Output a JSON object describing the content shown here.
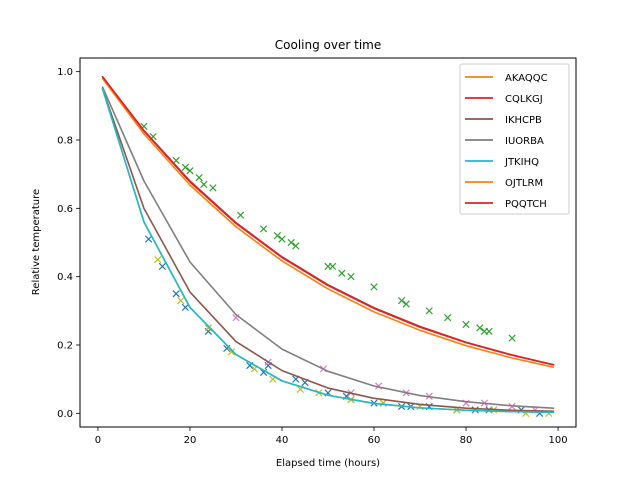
{
  "chart_data": {
    "type": "line",
    "title": "Cooling over time",
    "xlabel": "Elapsed time (hours)",
    "ylabel": "Relative temperature",
    "xlim": [
      -3.9,
      103.9
    ],
    "ylim": [
      -0.04,
      1.04
    ],
    "x_ticks": [
      0,
      20,
      40,
      60,
      80,
      100
    ],
    "y_ticks": [
      0.0,
      0.2,
      0.4,
      0.6,
      0.8,
      1.0
    ],
    "grid": false,
    "legend_position": "top-right",
    "series": [
      {
        "name": "AKAQQC",
        "color": "#ff7f0e",
        "x": [
          1,
          10,
          20,
          30,
          40,
          50,
          60,
          70,
          80,
          90,
          99
        ],
        "y": [
          0.95,
          0.56,
          0.31,
          0.172,
          0.095,
          0.053,
          0.029,
          0.016,
          0.009,
          0.005,
          0.003
        ]
      },
      {
        "name": "CQLKGJ",
        "color": "#d62728",
        "x": [
          1,
          10,
          20,
          30,
          40,
          50,
          60,
          70,
          80,
          90,
          99
        ],
        "y": [
          0.985,
          0.828,
          0.68,
          0.558,
          0.458,
          0.376,
          0.309,
          0.254,
          0.208,
          0.171,
          0.142
        ]
      },
      {
        "name": "IKHCPB",
        "color": "#8c564b",
        "x": [
          1,
          10,
          20,
          30,
          40,
          50,
          60,
          70,
          80,
          90,
          99
        ],
        "y": [
          0.95,
          0.6,
          0.355,
          0.21,
          0.125,
          0.074,
          0.044,
          0.026,
          0.015,
          0.009,
          0.006
        ]
      },
      {
        "name": "IUORBA",
        "color": "#7f7f7f",
        "x": [
          1,
          10,
          20,
          30,
          40,
          50,
          60,
          70,
          80,
          90,
          99
        ],
        "y": [
          0.955,
          0.68,
          0.443,
          0.289,
          0.188,
          0.123,
          0.08,
          0.052,
          0.034,
          0.022,
          0.015
        ]
      },
      {
        "name": "JTKIHQ",
        "color": "#17becf",
        "x": [
          1,
          10,
          20,
          30,
          40,
          50,
          60,
          70,
          80,
          90,
          99
        ],
        "y": [
          0.95,
          0.56,
          0.31,
          0.172,
          0.095,
          0.053,
          0.029,
          0.016,
          0.009,
          0.005,
          0.003
        ]
      },
      {
        "name": "OJTLRM",
        "color": "#ff7f0e",
        "x": [
          1,
          10,
          20,
          30,
          40,
          50,
          60,
          70,
          80,
          90,
          99
        ],
        "y": [
          0.98,
          0.818,
          0.668,
          0.546,
          0.446,
          0.364,
          0.297,
          0.243,
          0.198,
          0.162,
          0.135
        ]
      },
      {
        "name": "PQQTCH",
        "color": "#d62728",
        "x": [
          1,
          10,
          20,
          30,
          40,
          50,
          60,
          70,
          80,
          90,
          99
        ],
        "y": [
          0.985,
          0.826,
          0.677,
          0.556,
          0.456,
          0.374,
          0.307,
          0.252,
          0.207,
          0.17,
          0.142
        ]
      }
    ],
    "scatter_series": [
      {
        "color": "#2ca02c",
        "x": [
          10,
          12,
          17,
          19,
          20,
          22,
          23,
          25,
          31,
          36,
          39,
          40,
          42,
          43,
          50,
          51,
          53,
          55,
          60,
          66,
          67,
          72,
          76,
          80,
          83,
          84,
          85,
          90
        ],
        "y": [
          0.84,
          0.81,
          0.74,
          0.72,
          0.71,
          0.69,
          0.67,
          0.66,
          0.58,
          0.54,
          0.52,
          0.51,
          0.5,
          0.49,
          0.43,
          0.43,
          0.41,
          0.4,
          0.37,
          0.33,
          0.32,
          0.3,
          0.28,
          0.26,
          0.25,
          0.24,
          0.24,
          0.22
        ]
      },
      {
        "color": "#1f77b4",
        "x": [
          11,
          14,
          17,
          19,
          24,
          28,
          33,
          36,
          37,
          43,
          45,
          50,
          54,
          55,
          60,
          62,
          66,
          68,
          72,
          78,
          82,
          85,
          92,
          96
        ],
        "y": [
          0.51,
          0.43,
          0.35,
          0.31,
          0.24,
          0.19,
          0.14,
          0.12,
          0.14,
          0.1,
          0.09,
          0.06,
          0.05,
          0.04,
          0.03,
          0.03,
          0.02,
          0.02,
          0.02,
          0.01,
          0.01,
          0.01,
          0.01,
          0.0
        ]
      },
      {
        "color": "#e377c2",
        "x": [
          30,
          37,
          49,
          55,
          61,
          67,
          72,
          80,
          84,
          90,
          95
        ],
        "y": [
          0.28,
          0.15,
          0.13,
          0.06,
          0.08,
          0.06,
          0.05,
          0.03,
          0.03,
          0.02,
          0.01
        ]
      },
      {
        "color": "#bcbd22",
        "x": [
          13,
          18,
          24,
          29,
          34,
          38,
          44,
          48,
          55,
          62,
          70,
          78,
          86,
          93,
          98
        ],
        "y": [
          0.45,
          0.33,
          0.25,
          0.18,
          0.13,
          0.1,
          0.07,
          0.06,
          0.04,
          0.03,
          0.02,
          0.01,
          0.01,
          0.0,
          0.0
        ]
      }
    ]
  }
}
